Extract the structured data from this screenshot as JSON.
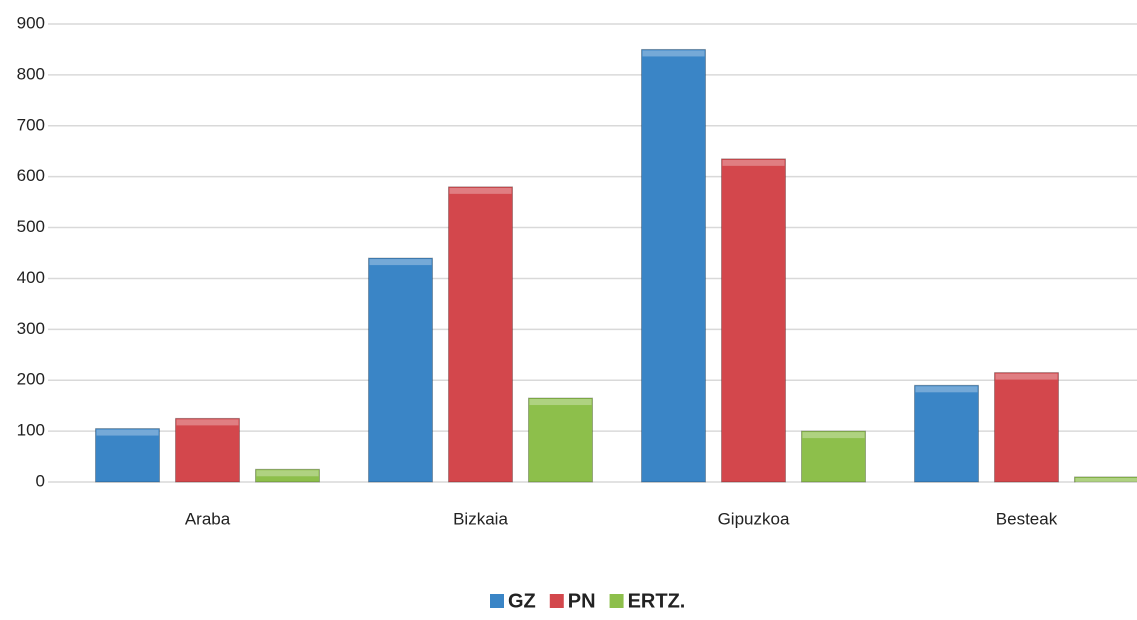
{
  "chart_data": {
    "type": "bar",
    "categories": [
      "Araba",
      "Bizkaia",
      "Gipuzkoa",
      "Besteak"
    ],
    "series": [
      {
        "name": "GZ",
        "color": "#3a85c6",
        "values": [
          105,
          440,
          850,
          190
        ]
      },
      {
        "name": "PN",
        "color": "#d3474c",
        "values": [
          125,
          580,
          635,
          215
        ]
      },
      {
        "name": "ERTZ.",
        "color": "#8dbf4b",
        "values": [
          25,
          165,
          100,
          10
        ]
      }
    ],
    "ylim": [
      0,
      900
    ],
    "yticks": [
      0,
      100,
      200,
      300,
      400,
      500,
      600,
      700,
      800,
      900
    ],
    "grid": true
  }
}
